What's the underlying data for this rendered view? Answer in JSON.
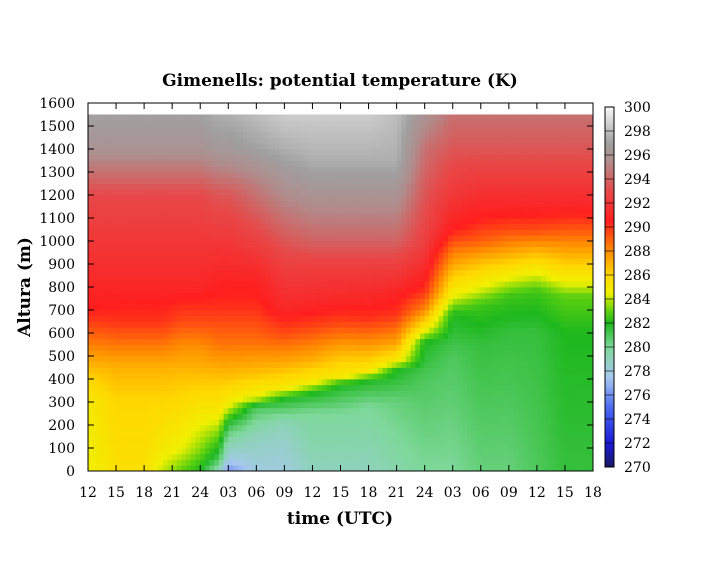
{
  "chart_data": {
    "type": "heatmap",
    "title": "Gimenells: potential temperature (K)",
    "xlabel": "time (UTC)",
    "ylabel": "Altura (m)",
    "x_ticks": [
      "12",
      "15",
      "18",
      "21",
      "24",
      "03",
      "06",
      "09",
      "12",
      "15",
      "18",
      "21",
      "24",
      "03",
      "06",
      "09",
      "12",
      "15",
      "18"
    ],
    "y_ticks": [
      0,
      100,
      200,
      300,
      400,
      500,
      600,
      700,
      800,
      900,
      1000,
      1100,
      1200,
      1300,
      1400,
      1500,
      1600
    ],
    "ylim": [
      0,
      1600
    ],
    "x_range_hours": [
      0,
      54
    ],
    "data_top_m": 1550,
    "colorbar": {
      "ticks": [
        270,
        272,
        274,
        276,
        278,
        280,
        282,
        284,
        286,
        288,
        290,
        292,
        294,
        296,
        298,
        300
      ],
      "range": [
        270,
        300
      ],
      "stops": [
        {
          "value": 270,
          "color": "#1a1a60"
        },
        {
          "value": 272,
          "color": "#1a1ad8"
        },
        {
          "value": 275,
          "color": "#4a6cf0"
        },
        {
          "value": 277.5,
          "color": "#a8c8f0"
        },
        {
          "value": 280,
          "color": "#7ed89a"
        },
        {
          "value": 282,
          "color": "#1eb81e"
        },
        {
          "value": 283,
          "color": "#5cd010"
        },
        {
          "value": 284.5,
          "color": "#f0f000"
        },
        {
          "value": 286,
          "color": "#ffd800"
        },
        {
          "value": 288,
          "color": "#ff8c00"
        },
        {
          "value": 290.5,
          "color": "#ff1e1e"
        },
        {
          "value": 293,
          "color": "#e84848"
        },
        {
          "value": 295.5,
          "color": "#b08c8c"
        },
        {
          "value": 297,
          "color": "#a0a0a0"
        },
        {
          "value": 300,
          "color": "#f8f8f8"
        }
      ]
    },
    "profiles": [
      {
        "hour": 0,
        "theta": [
          [
            0,
            284.5
          ],
          [
            300,
            285
          ],
          [
            400,
            286
          ],
          [
            500,
            287.5
          ],
          [
            600,
            289
          ],
          [
            700,
            290.5
          ],
          [
            800,
            291
          ],
          [
            1000,
            292
          ],
          [
            1200,
            293
          ],
          [
            1300,
            294.5
          ],
          [
            1400,
            296
          ],
          [
            1550,
            297
          ]
        ]
      },
      {
        "hour": 3,
        "theta": [
          [
            0,
            285.5
          ],
          [
            300,
            286
          ],
          [
            450,
            287
          ],
          [
            550,
            288.5
          ],
          [
            650,
            290
          ],
          [
            800,
            291
          ],
          [
            1000,
            292
          ],
          [
            1200,
            293
          ],
          [
            1300,
            294.5
          ],
          [
            1400,
            296
          ],
          [
            1550,
            297
          ]
        ]
      },
      {
        "hour": 6,
        "theta": [
          [
            0,
            285.5
          ],
          [
            300,
            286
          ],
          [
            450,
            287
          ],
          [
            550,
            288.5
          ],
          [
            650,
            290
          ],
          [
            800,
            291
          ],
          [
            1000,
            292
          ],
          [
            1200,
            293
          ],
          [
            1300,
            294.5
          ],
          [
            1400,
            296
          ],
          [
            1550,
            297
          ]
        ]
      },
      {
        "hour": 8,
        "theta": [
          [
            0,
            284
          ],
          [
            100,
            285
          ],
          [
            300,
            286
          ],
          [
            450,
            287
          ],
          [
            550,
            288.5
          ],
          [
            650,
            290
          ],
          [
            800,
            291
          ],
          [
            1000,
            292
          ],
          [
            1200,
            293
          ],
          [
            1300,
            294.5
          ],
          [
            1400,
            296
          ],
          [
            1550,
            297
          ]
        ]
      },
      {
        "hour": 10,
        "theta": [
          [
            0,
            283
          ],
          [
            100,
            284.5
          ],
          [
            250,
            285.5
          ],
          [
            400,
            286.5
          ],
          [
            550,
            288
          ],
          [
            650,
            289.5
          ],
          [
            800,
            291
          ],
          [
            1000,
            292
          ],
          [
            1200,
            293
          ],
          [
            1300,
            294.5
          ],
          [
            1400,
            296
          ],
          [
            1550,
            297
          ]
        ]
      },
      {
        "hour": 12,
        "theta": [
          [
            0,
            282
          ],
          [
            100,
            283.5
          ],
          [
            250,
            285
          ],
          [
            400,
            286.5
          ],
          [
            550,
            288
          ],
          [
            650,
            289.5
          ],
          [
            800,
            291
          ],
          [
            1000,
            292
          ],
          [
            1200,
            293
          ],
          [
            1300,
            294.5
          ],
          [
            1400,
            296
          ],
          [
            1550,
            297
          ]
        ]
      },
      {
        "hour": 14,
        "theta": [
          [
            0,
            279
          ],
          [
            50,
            281
          ],
          [
            150,
            283
          ],
          [
            250,
            285
          ],
          [
            400,
            286.5
          ],
          [
            550,
            288.5
          ],
          [
            700,
            290
          ],
          [
            850,
            291
          ],
          [
            1000,
            292
          ],
          [
            1200,
            293.5
          ],
          [
            1300,
            295
          ],
          [
            1400,
            296.5
          ],
          [
            1550,
            297.5
          ]
        ]
      },
      {
        "hour": 15,
        "theta": [
          [
            0,
            276
          ],
          [
            60,
            278
          ],
          [
            150,
            280
          ],
          [
            220,
            282
          ],
          [
            280,
            284.5
          ],
          [
            400,
            286.5
          ],
          [
            550,
            288.5
          ],
          [
            700,
            290
          ],
          [
            850,
            291
          ],
          [
            1000,
            292
          ],
          [
            1200,
            293.5
          ],
          [
            1300,
            295
          ],
          [
            1400,
            296.5
          ],
          [
            1550,
            297.5
          ]
        ]
      },
      {
        "hour": 18,
        "theta": [
          [
            0,
            278
          ],
          [
            150,
            279
          ],
          [
            280,
            281
          ],
          [
            320,
            284.5
          ],
          [
            420,
            286.5
          ],
          [
            550,
            288.5
          ],
          [
            700,
            290
          ],
          [
            850,
            291
          ],
          [
            1000,
            292.5
          ],
          [
            1100,
            293.5
          ],
          [
            1250,
            295
          ],
          [
            1400,
            297
          ],
          [
            1550,
            298
          ]
        ]
      },
      {
        "hour": 21,
        "theta": [
          [
            0,
            278
          ],
          [
            200,
            279
          ],
          [
            320,
            282
          ],
          [
            360,
            285
          ],
          [
            460,
            287
          ],
          [
            600,
            289.5
          ],
          [
            700,
            291
          ],
          [
            900,
            292.5
          ],
          [
            1050,
            294
          ],
          [
            1200,
            295.5
          ],
          [
            1400,
            297.5
          ],
          [
            1550,
            298.5
          ]
        ]
      },
      {
        "hour": 24,
        "theta": [
          [
            0,
            279
          ],
          [
            250,
            280
          ],
          [
            340,
            282
          ],
          [
            390,
            285
          ],
          [
            480,
            287
          ],
          [
            620,
            289.5
          ],
          [
            720,
            291
          ],
          [
            900,
            292.5
          ],
          [
            1000,
            294
          ],
          [
            1150,
            295.5
          ],
          [
            1350,
            297.5
          ],
          [
            1550,
            298.5
          ]
        ]
      },
      {
        "hour": 27,
        "theta": [
          [
            0,
            279
          ],
          [
            250,
            280
          ],
          [
            380,
            282
          ],
          [
            410,
            285
          ],
          [
            520,
            287
          ],
          [
            640,
            289.5
          ],
          [
            740,
            291
          ],
          [
            900,
            292.5
          ],
          [
            1000,
            294
          ],
          [
            1150,
            295.5
          ],
          [
            1350,
            297.5
          ],
          [
            1550,
            298.5
          ]
        ]
      },
      {
        "hour": 30,
        "theta": [
          [
            0,
            279
          ],
          [
            280,
            280
          ],
          [
            400,
            282
          ],
          [
            430,
            285
          ],
          [
            540,
            287.5
          ],
          [
            660,
            290
          ],
          [
            750,
            291
          ],
          [
            900,
            292.5
          ],
          [
            1000,
            294
          ],
          [
            1150,
            295.5
          ],
          [
            1350,
            297.5
          ],
          [
            1550,
            298.5
          ]
        ]
      },
      {
        "hour": 33,
        "theta": [
          [
            0,
            279.5
          ],
          [
            300,
            280.5
          ],
          [
            440,
            282
          ],
          [
            480,
            285
          ],
          [
            560,
            287.5
          ],
          [
            680,
            290
          ],
          [
            780,
            291
          ],
          [
            900,
            292.5
          ],
          [
            1000,
            294
          ],
          [
            1150,
            295.5
          ],
          [
            1350,
            297.5
          ],
          [
            1550,
            298
          ]
        ]
      },
      {
        "hour": 36,
        "theta": [
          [
            0,
            280
          ],
          [
            400,
            281
          ],
          [
            560,
            282
          ],
          [
            620,
            285
          ],
          [
            700,
            288
          ],
          [
            780,
            290
          ],
          [
            900,
            291.5
          ],
          [
            1000,
            292.5
          ],
          [
            1200,
            293.5
          ],
          [
            1400,
            294.5
          ],
          [
            1550,
            296
          ]
        ]
      },
      {
        "hour": 39,
        "theta": [
          [
            0,
            280
          ],
          [
            500,
            281
          ],
          [
            680,
            282
          ],
          [
            760,
            284.5
          ],
          [
            860,
            286.5
          ],
          [
            960,
            288.5
          ],
          [
            1050,
            290.5
          ],
          [
            1200,
            292
          ],
          [
            1400,
            293.5
          ],
          [
            1550,
            294.5
          ]
        ]
      },
      {
        "hour": 42,
        "theta": [
          [
            0,
            280.5
          ],
          [
            550,
            281.5
          ],
          [
            720,
            282.5
          ],
          [
            800,
            284.5
          ],
          [
            900,
            286.5
          ],
          [
            1000,
            289
          ],
          [
            1100,
            290.5
          ],
          [
            1250,
            292
          ],
          [
            1400,
            293.5
          ],
          [
            1550,
            294.5
          ]
        ]
      },
      {
        "hour": 45,
        "theta": [
          [
            0,
            280.5
          ],
          [
            600,
            281.5
          ],
          [
            760,
            282.5
          ],
          [
            840,
            284.5
          ],
          [
            940,
            287
          ],
          [
            1050,
            289.5
          ],
          [
            1150,
            291
          ],
          [
            1300,
            292.5
          ],
          [
            1400,
            293.5
          ],
          [
            1550,
            294.5
          ]
        ]
      },
      {
        "hour": 48,
        "theta": [
          [
            0,
            281
          ],
          [
            600,
            281.5
          ],
          [
            780,
            282.5
          ],
          [
            860,
            284.5
          ],
          [
            960,
            287
          ],
          [
            1050,
            289.5
          ],
          [
            1150,
            291
          ],
          [
            1300,
            292.5
          ],
          [
            1400,
            293.5
          ],
          [
            1550,
            294.5
          ]
        ]
      },
      {
        "hour": 51,
        "theta": [
          [
            0,
            281.5
          ],
          [
            600,
            282
          ],
          [
            760,
            283
          ],
          [
            840,
            285
          ],
          [
            940,
            287
          ],
          [
            1040,
            289
          ],
          [
            1150,
            291
          ],
          [
            1300,
            292.5
          ],
          [
            1400,
            293.5
          ],
          [
            1550,
            294.5
          ]
        ]
      },
      {
        "hour": 54,
        "theta": [
          [
            0,
            281.5
          ],
          [
            600,
            282
          ],
          [
            760,
            283
          ],
          [
            840,
            285
          ],
          [
            940,
            287
          ],
          [
            1040,
            289
          ],
          [
            1150,
            291
          ],
          [
            1300,
            292.5
          ],
          [
            1400,
            293.5
          ],
          [
            1550,
            294.5
          ]
        ]
      }
    ]
  }
}
